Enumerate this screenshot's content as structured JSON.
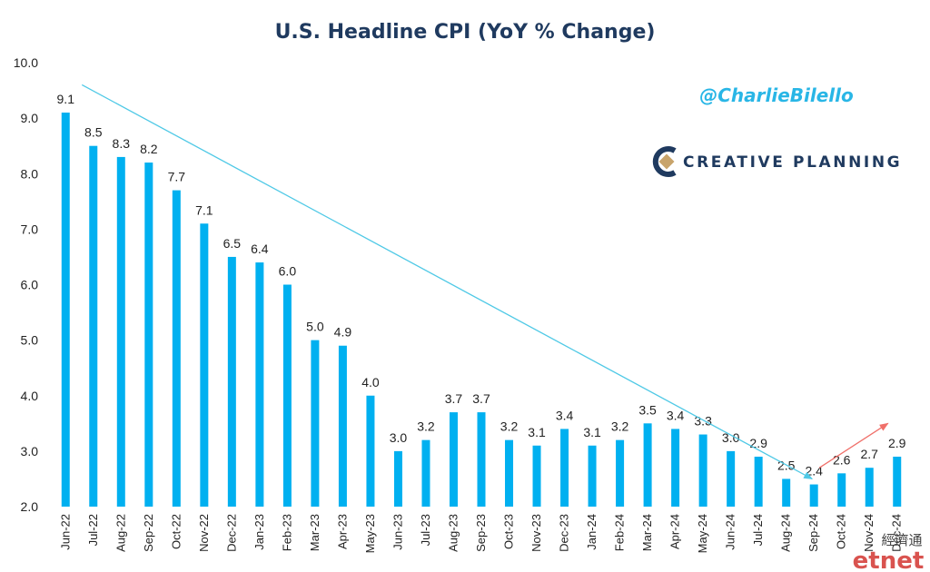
{
  "chart_data": {
    "type": "bar",
    "title": "U.S. Headline CPI (YoY % Change)",
    "xlabel": "",
    "ylabel": "",
    "ylim": [
      2.0,
      10.0
    ],
    "yticks": [
      "2.0",
      "3.0",
      "4.0",
      "5.0",
      "6.0",
      "7.0",
      "8.0",
      "9.0",
      "10.0"
    ],
    "categories": [
      "Jun-22",
      "Jul-22",
      "Aug-22",
      "Sep-22",
      "Oct-22",
      "Nov-22",
      "Dec-22",
      "Jan-23",
      "Feb-23",
      "Mar-23",
      "Apr-23",
      "May-23",
      "Jun-23",
      "Jul-23",
      "Aug-23",
      "Sep-23",
      "Oct-23",
      "Nov-23",
      "Dec-23",
      "Jan-24",
      "Feb-24",
      "Mar-24",
      "Apr-24",
      "May-24",
      "Jun-24",
      "Jul-24",
      "Aug-24",
      "Sep-24",
      "Oct-24",
      "Nov-24",
      "Dec-24"
    ],
    "values": [
      9.1,
      8.5,
      8.3,
      8.2,
      7.7,
      7.1,
      6.5,
      6.4,
      6.0,
      5.0,
      4.9,
      4.0,
      3.0,
      3.2,
      3.7,
      3.7,
      3.2,
      3.1,
      3.4,
      3.1,
      3.2,
      3.5,
      3.4,
      3.3,
      3.0,
      2.9,
      2.5,
      2.4,
      2.6,
      2.7,
      2.9
    ],
    "data_labels": [
      "9.1",
      "8.5",
      "8.3",
      "8.2",
      "7.7",
      "7.1",
      "6.5",
      "6.4",
      "6.0",
      "5.0",
      "4.9",
      "4.0",
      "3.0",
      "3.2",
      "3.7",
      "3.7",
      "3.2",
      "3.1",
      "3.4",
      "3.1",
      "3.2",
      "3.5",
      "3.4",
      "3.3",
      "3.0",
      "2.9",
      "2.5",
      "2.4",
      "2.6",
      "2.7",
      "2.9"
    ],
    "grid": false,
    "legend": "none",
    "bar_color": "#00b0f0",
    "annotations": [
      {
        "type": "trend-arrow",
        "color": "#4fc9e6",
        "from": {
          "x": "Jun-22",
          "y": 9.6
        },
        "to": {
          "x": "Sep-24",
          "y": 2.5
        }
      },
      {
        "type": "trend-arrow",
        "color": "#f0706a",
        "from": {
          "x": "Sep-24",
          "y": 2.7
        },
        "to": {
          "x": "Dec-24",
          "y": 3.5
        }
      }
    ]
  },
  "branding": {
    "handle": "@CharlieBilello",
    "logo_text": "CREATIVE PLANNING",
    "logo_colors": {
      "navy": "#1f3a5f",
      "tan": "#c8a46b"
    },
    "watermark_cn": "經濟通",
    "watermark_en": "etnet",
    "watermark_color": "#d9534f"
  }
}
